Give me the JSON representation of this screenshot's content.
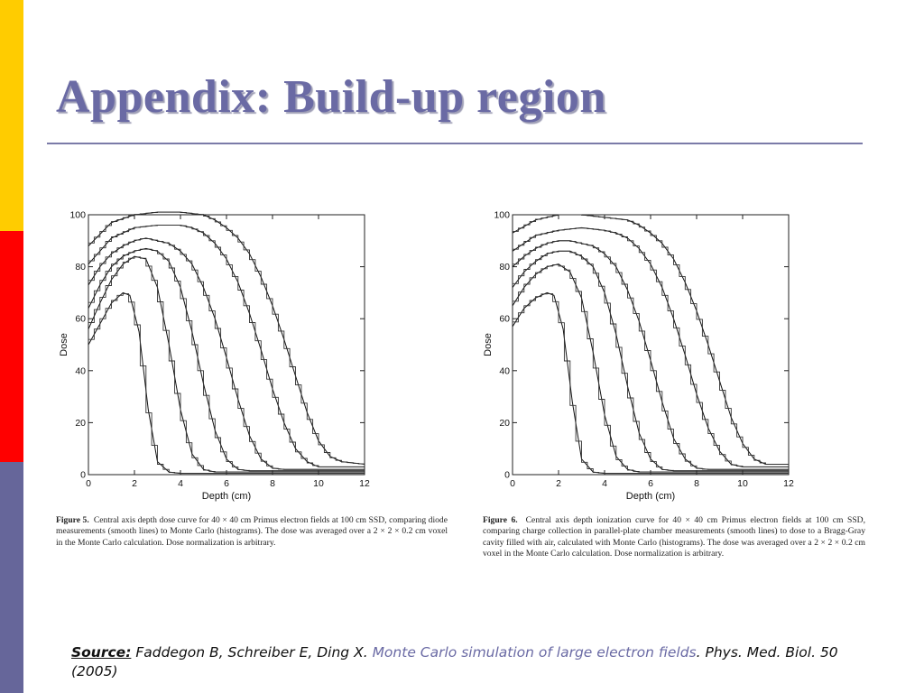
{
  "slide": {
    "title": "Appendix: Build-up region",
    "colors": {
      "title": "#6a6aa4",
      "rule": "#7b7ba8",
      "sidebar": [
        "#ffcc00",
        "#ff0000",
        "#66669a"
      ]
    }
  },
  "chart_data": [
    {
      "type": "line",
      "xlabel": "Depth (cm)",
      "ylabel": "Dose",
      "xlim": [
        0,
        12
      ],
      "ylim": [
        0,
        100
      ],
      "xticks": [
        0,
        2,
        4,
        6,
        8,
        10,
        12
      ],
      "yticks": [
        0,
        20,
        40,
        60,
        80,
        100
      ],
      "grid": false,
      "series": [
        {
          "x": [
            0,
            0.5,
            1,
            1.5,
            1.8,
            2.2,
            2.6,
            3,
            3.5,
            4,
            12
          ],
          "y": [
            50,
            58,
            66,
            70,
            69,
            55,
            25,
            5,
            1,
            0.5,
            0.5
          ]
        },
        {
          "x": [
            0,
            0.5,
            1,
            1.5,
            2,
            2.5,
            3,
            3.5,
            4,
            4.5,
            5,
            5.5,
            12
          ],
          "y": [
            56,
            66,
            75,
            81,
            84,
            83,
            72,
            50,
            25,
            8,
            2,
            1,
            1
          ]
        },
        {
          "x": [
            0,
            0.5,
            1,
            1.5,
            2,
            2.5,
            3,
            3.5,
            4,
            4.5,
            5,
            5.5,
            6,
            6.5,
            7,
            12
          ],
          "y": [
            64,
            73,
            80,
            84,
            86,
            87,
            86,
            82,
            72,
            55,
            35,
            17,
            6,
            2,
            1.5,
            1.5
          ]
        },
        {
          "x": [
            0,
            0.5,
            1,
            1.5,
            2,
            2.5,
            3,
            3.5,
            4,
            4.5,
            5,
            5.5,
            6,
            6.5,
            7,
            7.5,
            8,
            8.5,
            12
          ],
          "y": [
            73,
            80,
            85,
            88,
            90,
            91,
            90,
            89,
            86,
            81,
            72,
            60,
            45,
            29,
            15,
            6,
            2.5,
            2,
            2
          ]
        },
        {
          "x": [
            0,
            1,
            2,
            3,
            4,
            4.5,
            5,
            5.5,
            6,
            6.5,
            7,
            7.5,
            8,
            8.5,
            9,
            9.5,
            10,
            12
          ],
          "y": [
            81,
            91,
            95,
            96,
            96,
            95,
            93,
            89,
            83,
            74,
            62,
            48,
            33,
            20,
            10,
            5,
            3,
            3
          ]
        },
        {
          "x": [
            0,
            1,
            2,
            3,
            4,
            5,
            5.5,
            6,
            6.5,
            7,
            7.5,
            8,
            8.5,
            9,
            9.5,
            10,
            10.5,
            11,
            12
          ],
          "y": [
            88,
            97,
            100,
            101,
            101,
            100,
            98,
            95,
            91,
            85,
            76,
            65,
            52,
            38,
            24,
            13,
            7,
            5,
            4
          ]
        }
      ]
    },
    {
      "type": "line",
      "xlabel": "Depth (cm)",
      "ylabel": "Dose",
      "xlim": [
        0,
        12
      ],
      "ylim": [
        0,
        100
      ],
      "xticks": [
        0,
        2,
        4,
        6,
        8,
        10,
        12
      ],
      "yticks": [
        0,
        20,
        40,
        60,
        80,
        100
      ],
      "grid": false,
      "series": [
        {
          "x": [
            0,
            0.5,
            1,
            1.5,
            1.8,
            2.2,
            2.6,
            3,
            3.5,
            4,
            12
          ],
          "y": [
            57,
            64,
            68,
            70,
            69,
            56,
            28,
            6,
            1,
            0.5,
            0.5
          ]
        },
        {
          "x": [
            0,
            0.5,
            1,
            1.5,
            2,
            2.5,
            3,
            3.5,
            4,
            4.5,
            5,
            5.5,
            12
          ],
          "y": [
            65,
            72,
            77,
            80,
            81,
            78,
            68,
            47,
            23,
            7,
            2,
            1,
            1
          ]
        },
        {
          "x": [
            0,
            0.5,
            1,
            1.5,
            2,
            2.5,
            3,
            3.5,
            4,
            4.5,
            5,
            5.5,
            6,
            6.5,
            7,
            12
          ],
          "y": [
            72,
            78,
            82,
            85,
            86,
            86,
            84,
            80,
            70,
            54,
            34,
            16,
            6,
            2,
            1.5,
            1.5
          ]
        },
        {
          "x": [
            0,
            0.5,
            1,
            1.5,
            2,
            2.5,
            3,
            3.5,
            4,
            4.5,
            5,
            5.5,
            6,
            6.5,
            7,
            7.5,
            8,
            8.5,
            12
          ],
          "y": [
            80,
            84,
            87,
            89,
            90,
            90,
            89,
            88,
            85,
            80,
            71,
            59,
            44,
            28,
            14,
            6,
            2.5,
            2,
            2
          ]
        },
        {
          "x": [
            0,
            1,
            2,
            3,
            4,
            4.5,
            5,
            5.5,
            6,
            6.5,
            7,
            7.5,
            8,
            8.5,
            9,
            9.5,
            10,
            12
          ],
          "y": [
            86,
            92,
            94,
            95,
            94,
            93,
            91,
            87,
            81,
            72,
            60,
            46,
            31,
            18,
            9,
            4,
            3,
            3
          ]
        },
        {
          "x": [
            0,
            1,
            2,
            3,
            4,
            5,
            5.5,
            6,
            6.5,
            7,
            7.5,
            8,
            8.5,
            9,
            9.5,
            10,
            10.5,
            11,
            12
          ],
          "y": [
            93,
            98,
            100,
            100,
            99,
            98,
            96,
            93,
            89,
            83,
            74,
            63,
            50,
            36,
            22,
            12,
            6,
            4,
            4
          ]
        }
      ]
    }
  ],
  "captions": [
    {
      "label": "Figure 5.",
      "text": "Central axis depth dose curve for 40 × 40 cm Primus electron fields at 100 cm SSD, comparing diode measurements (smooth lines) to Monte Carlo (histograms).  The dose was averaged over a 2 × 2 × 0.2 cm voxel in the Monte Carlo calculation.  Dose normalization is arbitrary."
    },
    {
      "label": "Figure 6.",
      "text": "Central axis depth ionization curve for 40 × 40 cm Primus electron fields at 100 cm SSD, comparing charge collection in parallel-plate chamber measurements (smooth lines) to dose to a Bragg-Gray cavity filled with air, calculated with Monte Carlo (histograms).  The dose was averaged over a 2 × 2 × 0.2 cm voxel in the Monte Carlo calculation.  Dose normalization is arbitrary."
    }
  ],
  "source": {
    "label": "Source:",
    "authors": "Faddegon B, Schreiber E, Ding X.",
    "title": "Monte Carlo simulation of large electron fields",
    "journal": ". Phys. Med. Biol. 50 (2005)"
  }
}
